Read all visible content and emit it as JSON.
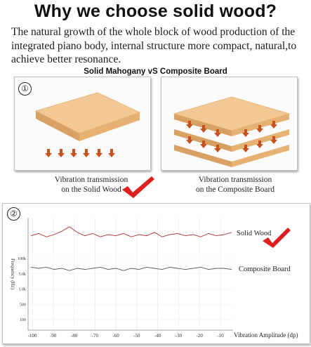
{
  "title": "Why we choose solid wood?",
  "intro": "The natural growth of the whole block of wood production of the integrated piano body, internal structure more compact, natural,to achieve better resonance.",
  "comparison": {
    "subtitle": "Solid Mahogany vS Composite Board",
    "panel1": {
      "number": "①",
      "caption_line1": "Vibration transmission",
      "caption_line2": "on the Solid Wood"
    },
    "panel2": {
      "caption_line1": "Vibration transmission",
      "caption_line2": "on the Composite Board"
    }
  },
  "chart_number": "②",
  "colors": {
    "wood_light": "#f2c994",
    "wood_dark": "#d9a064",
    "arrow": "#c8501c",
    "check": "#e02020",
    "solid_line": "#b03030",
    "composite_line": "#555555"
  },
  "chart_data": {
    "type": "line",
    "xlabel": "Vibration Amplitude (dp)",
    "ylabel": "Frequency (Hz)",
    "x_ticks": [
      "-100",
      "-90",
      "-80",
      "-70",
      "-60",
      "-50",
      "-40",
      "-30",
      "-20",
      "-10"
    ],
    "y_ticks": [
      "100k",
      "5.0k",
      "1.0k",
      "500",
      "100"
    ],
    "series": [
      {
        "name": "Solid Wood",
        "values": [
          0.84,
          0.86,
          0.83,
          0.85,
          0.88,
          0.92,
          0.87,
          0.84,
          0.86,
          0.83,
          0.85,
          0.84,
          0.86,
          0.83,
          0.85,
          0.84,
          0.87,
          0.83,
          0.85,
          0.86,
          0.84,
          0.85,
          0.83,
          0.86,
          0.84,
          0.85,
          0.87
        ]
      },
      {
        "name": "Composite Board",
        "values": [
          0.56,
          0.55,
          0.56,
          0.54,
          0.55,
          0.53,
          0.55,
          0.54,
          0.55,
          0.56,
          0.54,
          0.55,
          0.53,
          0.55,
          0.54,
          0.56,
          0.55,
          0.54,
          0.56,
          0.55,
          0.54,
          0.55,
          0.56,
          0.54,
          0.55,
          0.55,
          0.54
        ]
      }
    ],
    "grid": true
  }
}
